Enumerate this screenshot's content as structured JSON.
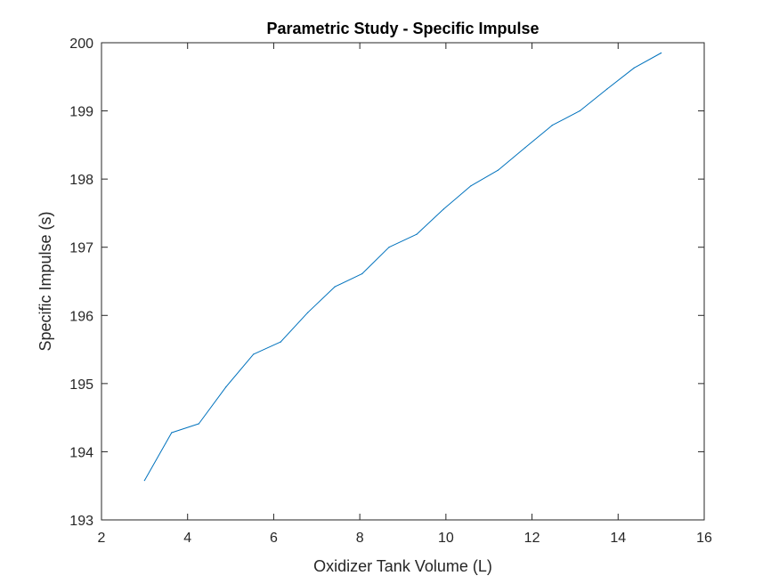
{
  "chart_data": {
    "type": "line",
    "title": "Parametric Study - Specific Impulse",
    "xlabel": "Oxidizer Tank Volume (L)",
    "ylabel": "Specific Impulse (s)",
    "xlim": [
      2,
      16
    ],
    "ylim": [
      193,
      200
    ],
    "xticks": [
      2,
      4,
      6,
      8,
      10,
      12,
      14,
      16
    ],
    "yticks": [
      193,
      194,
      195,
      196,
      197,
      198,
      199,
      200
    ],
    "grid": false,
    "series": [
      {
        "color": "#0072BD",
        "x": [
          3.0,
          3.63,
          4.26,
          4.89,
          5.53,
          6.16,
          6.79,
          7.42,
          8.05,
          8.68,
          9.32,
          9.95,
          10.58,
          11.21,
          11.84,
          12.47,
          13.11,
          13.74,
          14.37,
          15.0
        ],
        "y": [
          193.58,
          194.28,
          194.41,
          194.95,
          195.43,
          195.61,
          196.04,
          196.42,
          196.61,
          197.0,
          197.19,
          197.56,
          197.9,
          198.13,
          198.46,
          198.79,
          199.0,
          199.32,
          199.63,
          199.85
        ]
      }
    ]
  }
}
